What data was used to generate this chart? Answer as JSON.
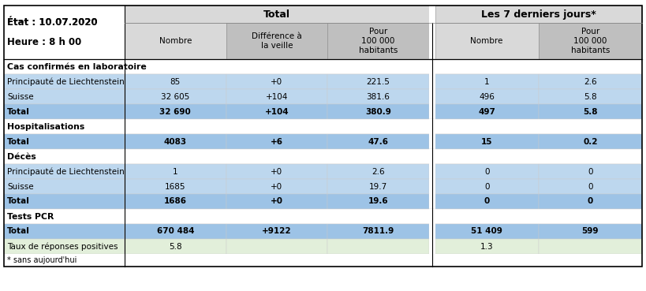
{
  "title_line1": "État : 10.07.2020",
  "title_line2": "Heure : 8 h 00",
  "footnote": "* sans aujourd'hui",
  "col_header_total": "Total",
  "col_header_7days": "Les 7 derniers jours*",
  "sub_headers": [
    "Nombre",
    "Différence à\nla veille",
    "Pour\n100 000\nhabitants",
    "Nombre",
    "Pour\n100 000\nhabitants"
  ],
  "sections": [
    {
      "section_label": "Cas confirmés en laboratoire",
      "rows": [
        {
          "label": "Principauté de Liechtenstein",
          "vals": [
            "85",
            "+0",
            "221.5",
            "1",
            "2.6"
          ],
          "bold": false
        },
        {
          "label": "Suisse",
          "vals": [
            "32 605",
            "+104",
            "381.6",
            "496",
            "5.8"
          ],
          "bold": false
        },
        {
          "label": "Total",
          "vals": [
            "32 690",
            "+104",
            "380.9",
            "497",
            "5.8"
          ],
          "bold": true
        }
      ]
    },
    {
      "section_label": "Hospitalisations",
      "rows": [
        {
          "label": "Total",
          "vals": [
            "4083",
            "+6",
            "47.6",
            "15",
            "0.2"
          ],
          "bold": true
        }
      ]
    },
    {
      "section_label": "Décès",
      "rows": [
        {
          "label": "Principauté de Liechtenstein",
          "vals": [
            "1",
            "+0",
            "2.6",
            "0",
            "0"
          ],
          "bold": false
        },
        {
          "label": "Suisse",
          "vals": [
            "1685",
            "+0",
            "19.7",
            "0",
            "0"
          ],
          "bold": false
        },
        {
          "label": "Total",
          "vals": [
            "1686",
            "+0",
            "19.6",
            "0",
            "0"
          ],
          "bold": true
        }
      ]
    },
    {
      "section_label": "Tests PCR",
      "rows": [
        {
          "label": "Total",
          "vals": [
            "670 484",
            "+9122",
            "7811.9",
            "51 409",
            "599"
          ],
          "bold": true
        },
        {
          "label": "Taux de réponses positives",
          "vals": [
            "5.8",
            "",
            "",
            "1.3",
            ""
          ],
          "bold": false
        }
      ]
    }
  ],
  "col_header1_bg": "#D9D9D9",
  "col_header2_bg": "#BFBFBF",
  "col_header_7d_bg": "#D9D9D9",
  "col_header_7d2_bg": "#BFBFBF",
  "row_normal_bg": "#BDD7EE",
  "row_bold_bg": "#9DC3E6",
  "row_taux_bg": "#E2EFDA",
  "section_bg": "#FFFFFF",
  "header_group_bg": "#D9D9D9",
  "header_group_7d_bg": "#D9D9D9",
  "white": "#FFFFFF",
  "border_color": "#000000",
  "text_color": "#000000"
}
